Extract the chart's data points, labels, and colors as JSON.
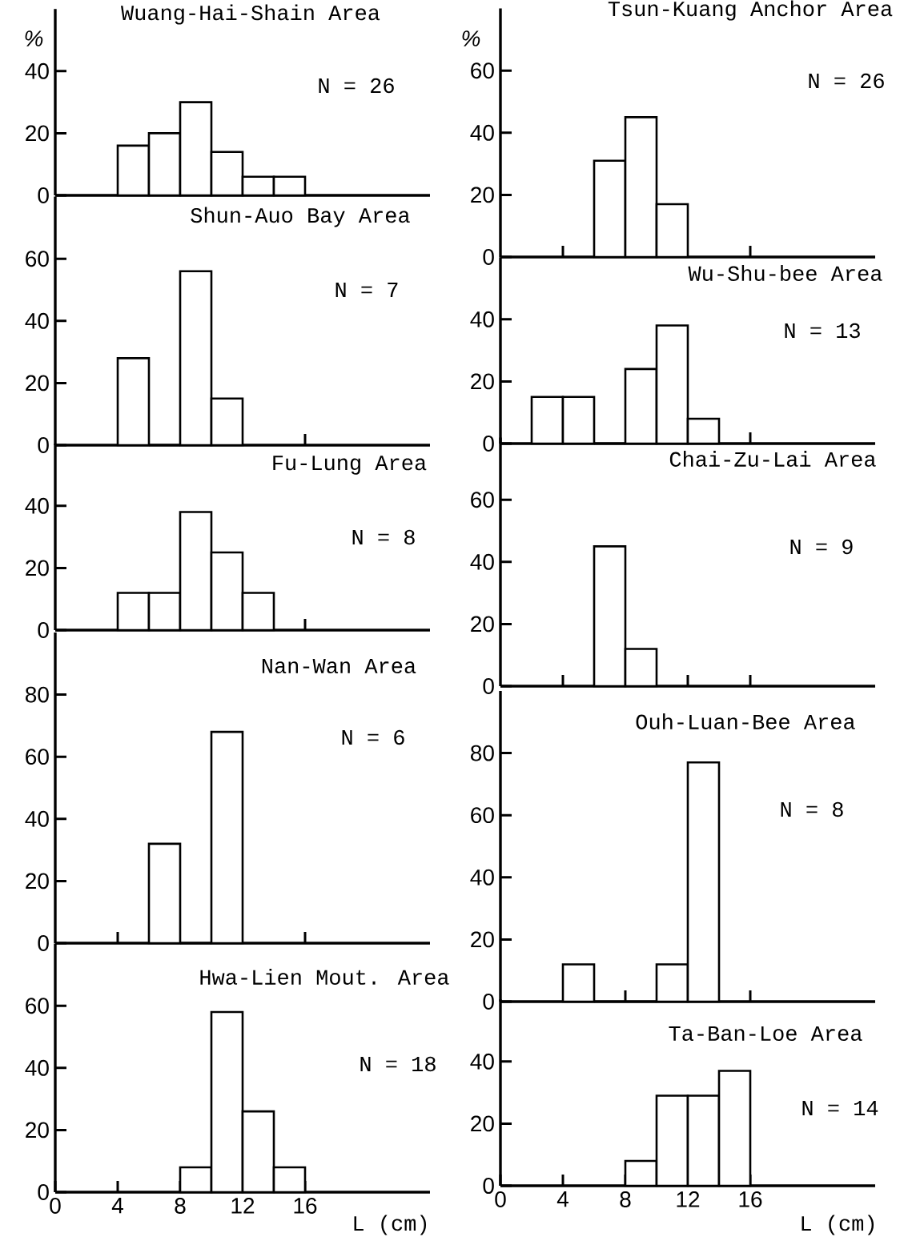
{
  "chart_data": [
    {
      "type": "histogram",
      "title": "Wuang-Hai-Shain Area",
      "ylabel": "%",
      "annotations": [
        "N = 26"
      ],
      "bins": [
        4,
        6,
        8,
        10,
        12,
        14,
        16
      ],
      "values": [
        16,
        20,
        30,
        14,
        6,
        6
      ],
      "color": "#ffffff",
      "xlim": [
        0,
        24
      ],
      "ylim": [
        0,
        60
      ],
      "yticks": [
        0,
        20,
        40
      ],
      "tick_labels": "y"
    },
    {
      "type": "histogram",
      "title": "Shun-Auo Bay Area",
      "annotations": [
        "N = 7"
      ],
      "bins": [
        4,
        6,
        8,
        10,
        12
      ],
      "values": [
        28,
        0,
        56,
        15
      ],
      "color": "#ffffff",
      "xlim": [
        0,
        24
      ],
      "ylim": [
        0,
        80
      ],
      "yticks": [
        0,
        20,
        40,
        60
      ],
      "xticks": [
        {
          "value": 16,
          "label": null
        }
      ],
      "tick_labels": "y"
    },
    {
      "type": "histogram",
      "title": "Fu-Lung Area",
      "annotations": [
        "N = 8"
      ],
      "bins": [
        4,
        6,
        8,
        10,
        12,
        14
      ],
      "values": [
        12,
        12,
        38,
        25,
        12
      ],
      "color": "#ffffff",
      "xlim": [
        0,
        24
      ],
      "ylim": [
        0,
        60
      ],
      "yticks": [
        0,
        20,
        40
      ],
      "xticks": [
        {
          "value": 16,
          "label": null
        }
      ],
      "tick_labels": "y"
    },
    {
      "type": "histogram",
      "title": "Nan-Wan Area",
      "annotations": [
        "N = 6"
      ],
      "bins": [
        6,
        8,
        10,
        12
      ],
      "values": [
        32,
        0,
        68
      ],
      "color": "#ffffff",
      "xlim": [
        0,
        24
      ],
      "ylim": [
        0,
        100
      ],
      "yticks": [
        0,
        20,
        40,
        60,
        80
      ],
      "xticks": [
        {
          "value": 4,
          "label": null
        },
        {
          "value": 16,
          "label": null
        }
      ],
      "tick_labels": "y"
    },
    {
      "type": "histogram",
      "title": "Hwa-Lien Mout. Area",
      "xlabel": "L (cm)",
      "annotations": [
        "N = 18"
      ],
      "bins": [
        8,
        10,
        12,
        14,
        16
      ],
      "values": [
        8,
        58,
        26,
        8
      ],
      "color": "#ffffff",
      "xlim": [
        0,
        24
      ],
      "ylim": [
        0,
        80
      ],
      "yticks": [
        0,
        20,
        40,
        60
      ],
      "xticks": [
        0,
        4,
        8,
        12,
        16
      ]
    },
    {
      "type": "histogram",
      "title": "Tsun-Kuang Anchor Area",
      "ylabel": "%",
      "annotations": [
        "N = 26"
      ],
      "bins": [
        6,
        8,
        10,
        12
      ],
      "values": [
        31,
        45,
        17
      ],
      "color": "#ffffff",
      "xlim": [
        0,
        24
      ],
      "ylim": [
        0,
        80
      ],
      "yticks": [
        0,
        20,
        40,
        60
      ],
      "xticks": [
        {
          "value": 4,
          "label": null
        },
        {
          "value": 16,
          "label": null
        }
      ],
      "tick_labels": "y"
    },
    {
      "type": "histogram",
      "title": "Wu-Shu-bee Area",
      "annotations": [
        "N = 13"
      ],
      "bins": [
        2,
        4,
        6,
        8,
        10,
        12,
        14
      ],
      "values": [
        15,
        15,
        0,
        24,
        38,
        8
      ],
      "color": "#ffffff",
      "xlim": [
        0,
        24
      ],
      "ylim": [
        0,
        60
      ],
      "yticks": [
        0,
        20,
        40
      ],
      "xticks": [
        {
          "value": 16,
          "label": null
        }
      ],
      "tick_labels": "y"
    },
    {
      "type": "histogram",
      "title": "Chai-Zu-Lai Area",
      "annotations": [
        "N = 9"
      ],
      "bins": [
        6,
        8,
        10
      ],
      "values": [
        45,
        12
      ],
      "color": "#ffffff",
      "xlim": [
        0,
        24
      ],
      "ylim": [
        0,
        80
      ],
      "yticks": [
        0,
        20,
        40,
        60
      ],
      "xticks": [
        {
          "value": 4,
          "label": null
        },
        {
          "value": 12,
          "label": null
        },
        {
          "value": 16,
          "label": null
        }
      ],
      "tick_labels": "y"
    },
    {
      "type": "histogram",
      "title": "Ouh-Luan-Bee Area",
      "annotations": [
        "N = 8"
      ],
      "bins": [
        4,
        6,
        8,
        10,
        12,
        14
      ],
      "values": [
        12,
        0,
        0,
        12,
        77
      ],
      "color": "#ffffff",
      "xlim": [
        0,
        24
      ],
      "ylim": [
        0,
        100
      ],
      "yticks": [
        0,
        20,
        40,
        60,
        80
      ],
      "xticks": [
        {
          "value": 8,
          "label": null
        },
        {
          "value": 16,
          "label": null
        }
      ],
      "tick_labels": "y"
    },
    {
      "type": "histogram",
      "title": "Ta-Ban-Loe Area",
      "xlabel": "L (cm)",
      "annotations": [
        "N = 14"
      ],
      "bins": [
        8,
        10,
        12,
        14,
        16
      ],
      "values": [
        8,
        29,
        29,
        37
      ],
      "color": "#ffffff",
      "xlim": [
        0,
        24
      ],
      "ylim": [
        0,
        60
      ],
      "yticks": [
        0,
        20,
        40
      ],
      "xticks": [
        0,
        4,
        8,
        12,
        16
      ]
    }
  ]
}
